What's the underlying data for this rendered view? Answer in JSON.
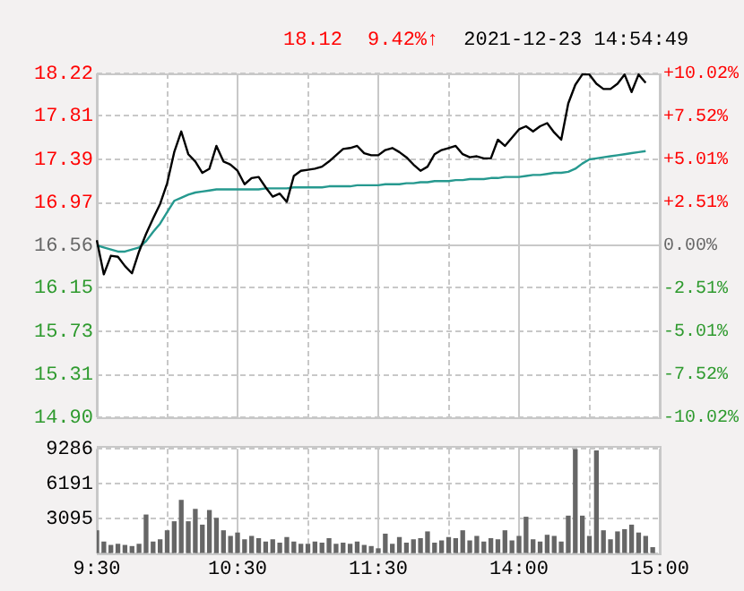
{
  "chart_data": [
    {
      "type": "line",
      "annotations": [
        "18.12",
        "9.42%↑",
        "2021-12-23 14:54:49"
      ],
      "categories": [
        null,
        null,
        null,
        null,
        null,
        null,
        null,
        null,
        null,
        null,
        null,
        null,
        null,
        null,
        null,
        null,
        null,
        null,
        null,
        null,
        null,
        null,
        null,
        null,
        null,
        null,
        null,
        null,
        null,
        null,
        null,
        null,
        null,
        null,
        null,
        null,
        null,
        null,
        null,
        null,
        null,
        null,
        null,
        null,
        null,
        null,
        null,
        null,
        null,
        null,
        null,
        null,
        null,
        null,
        null,
        null,
        null,
        null,
        null,
        null,
        null,
        null,
        null,
        null,
        null,
        null,
        null,
        null,
        null,
        null,
        null,
        null,
        null,
        null,
        null,
        null,
        null,
        null,
        null,
        null,
        null
      ],
      "series": [
        {
          "color": "#000000",
          "values": [
            16.61,
            16.28,
            16.46,
            16.45,
            16.36,
            16.29,
            16.5,
            16.67,
            16.82,
            16.96,
            17.16,
            17.46,
            17.66,
            17.44,
            17.37,
            17.26,
            17.3,
            17.52,
            17.37,
            17.34,
            17.28,
            17.15,
            17.21,
            17.22,
            17.12,
            17.03,
            17.06,
            16.98,
            17.23,
            17.28,
            17.29,
            17.3,
            17.32,
            17.37,
            17.43,
            17.49,
            17.5,
            17.52,
            17.45,
            17.43,
            17.43,
            17.48,
            17.5,
            17.46,
            17.41,
            17.34,
            17.28,
            17.32,
            17.44,
            17.48,
            17.5,
            17.52,
            17.44,
            17.41,
            17.42,
            17.4,
            17.4,
            17.58,
            17.52,
            17.6,
            17.68,
            17.71,
            17.66,
            17.71,
            17.74,
            17.65,
            17.58,
            17.93,
            18.11,
            18.21,
            18.21,
            18.12,
            18.07,
            18.07,
            18.12,
            18.21,
            18.04,
            18.21,
            18.13,
            null,
            null
          ]
        },
        {
          "color": "#26998f",
          "values": [
            16.56,
            16.54,
            16.52,
            16.5,
            16.5,
            16.52,
            16.54,
            16.6,
            16.69,
            16.77,
            16.88,
            16.99,
            17.02,
            17.05,
            17.07,
            17.08,
            17.09,
            17.1,
            17.1,
            17.1,
            17.1,
            17.1,
            17.1,
            17.1,
            17.11,
            17.11,
            17.11,
            17.11,
            17.12,
            17.12,
            17.12,
            17.12,
            17.12,
            17.13,
            17.13,
            17.13,
            17.13,
            17.14,
            17.14,
            17.14,
            17.14,
            17.15,
            17.15,
            17.15,
            17.16,
            17.16,
            17.17,
            17.17,
            17.18,
            17.18,
            17.18,
            17.19,
            17.19,
            17.2,
            17.2,
            17.2,
            17.21,
            17.21,
            17.22,
            17.22,
            17.22,
            17.23,
            17.24,
            17.24,
            17.25,
            17.26,
            17.26,
            17.27,
            17.3,
            17.35,
            17.39,
            17.4,
            17.41,
            17.42,
            17.43,
            17.44,
            17.45,
            17.46,
            17.47,
            null,
            null
          ]
        }
      ],
      "ylim": [
        14.9,
        18.22
      ],
      "yticks": [
        18.22,
        17.81,
        17.39,
        16.97,
        16.56,
        16.15,
        15.73,
        15.31,
        {
          "value": 14.9,
          "label": "14.90"
        }
      ],
      "y2lim": [
        -10.02,
        10.02
      ],
      "y2ticks": [
        {
          "value": 10.02,
          "label": "+10.02%"
        },
        {
          "value": 7.52,
          "label": "+7.52%"
        },
        {
          "value": 5.01,
          "label": "+5.01%"
        },
        {
          "value": 2.51,
          "label": "+2.51%"
        },
        {
          "value": 0,
          "label": "0.00%"
        },
        {
          "value": -2.51,
          "label": "-2.51%"
        },
        {
          "value": -5.01,
          "label": "-5.01%"
        },
        {
          "value": -7.52,
          "label": "-7.52%"
        },
        {
          "value": -10.02,
          "label": "-10.02%"
        }
      ],
      "tick_labels": "y",
      "grid": true,
      "legend": false,
      "marker": "none"
    },
    {
      "type": "bar",
      "categories": [
        "9:30",
        null,
        null,
        null,
        null,
        null,
        null,
        null,
        null,
        null,
        null,
        null,
        null,
        null,
        null,
        null,
        null,
        null,
        null,
        null,
        "10:30",
        null,
        null,
        null,
        null,
        null,
        null,
        null,
        null,
        null,
        null,
        null,
        null,
        null,
        null,
        null,
        null,
        null,
        null,
        null,
        "11:30",
        null,
        null,
        null,
        null,
        null,
        null,
        null,
        null,
        null,
        null,
        null,
        null,
        null,
        null,
        null,
        null,
        null,
        null,
        null,
        "14:00",
        null,
        null,
        null,
        null,
        null,
        null,
        null,
        null,
        null,
        null,
        null,
        null,
        null,
        null,
        null,
        null,
        null,
        null,
        null,
        "15:00"
      ],
      "values": [
        2000,
        1000,
        700,
        800,
        700,
        600,
        800,
        3400,
        1000,
        1200,
        2000,
        2800,
        4700,
        2800,
        3900,
        2500,
        3800,
        3100,
        2000,
        1500,
        1800,
        1200,
        1500,
        1300,
        1000,
        1200,
        900,
        1400,
        1000,
        800,
        800,
        1000,
        900,
        1300,
        800,
        900,
        800,
        1000,
        700,
        600,
        400,
        1700,
        800,
        1400,
        900,
        1200,
        1300,
        1900,
        900,
        1100,
        1400,
        1300,
        2000,
        1100,
        1500,
        1000,
        1300,
        1200,
        2000,
        1100,
        1500,
        3200,
        1200,
        1000,
        1600,
        1500,
        1000,
        3300,
        9200,
        3300,
        1500,
        9100,
        2000,
        1200,
        1900,
        2100,
        2500,
        1800,
        1500,
        500,
        null
      ],
      "color": "#666666",
      "ylim": [
        0,
        9286
      ],
      "yticks": [
        {
          "value": 0,
          "label": null
        },
        3095,
        6191,
        9286
      ],
      "grid": true,
      "legend": false
    }
  ]
}
